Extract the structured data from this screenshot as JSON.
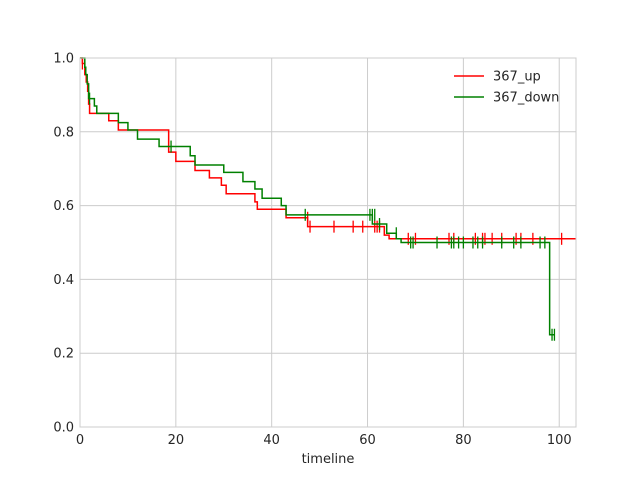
{
  "chart_data": {
    "type": "line",
    "step": "post",
    "title": "",
    "xlabel": "timeline",
    "ylabel": "",
    "xlim": [
      0,
      103.5
    ],
    "ylim": [
      0.0,
      1.0
    ],
    "xticks": [
      0,
      20,
      40,
      60,
      80,
      100
    ],
    "yticks": [
      0.0,
      0.2,
      0.4,
      0.6,
      0.8,
      1.0
    ],
    "xtick_labels": [
      "0",
      "20",
      "40",
      "60",
      "80",
      "100"
    ],
    "ytick_labels": [
      "0.0",
      "0.2",
      "0.4",
      "0.6",
      "0.8",
      "1.0"
    ],
    "grid": true,
    "legend_position": "top-right",
    "series": [
      {
        "name": "367_up",
        "color": "#ff0000",
        "x": [
          0,
          0.5,
          1.0,
          1.3,
          1.6,
          1.8,
          2.0,
          6.0,
          8.0,
          12.0,
          18.5,
          20.0,
          24.0,
          27.0,
          29.5,
          30.5,
          36.5,
          37.0,
          43.0,
          47.5,
          63.5,
          64.5,
          103.5
        ],
        "y": [
          1.0,
          0.985,
          0.955,
          0.935,
          0.91,
          0.875,
          0.85,
          0.83,
          0.805,
          0.805,
          0.745,
          0.72,
          0.695,
          0.675,
          0.655,
          0.632,
          0.61,
          0.59,
          0.567,
          0.543,
          0.52,
          0.51,
          0.51
        ],
        "censored_x": [
          0.5,
          47.5,
          48.0,
          53.0,
          57.0,
          59.0,
          61.5,
          62.0,
          62.5,
          68.5,
          70.0,
          77.0,
          78.0,
          82.5,
          84.0,
          84.5,
          86.0,
          88.0,
          91.0,
          92.0,
          94.5,
          100.5
        ],
        "censored_y": [
          0.985,
          0.567,
          0.543,
          0.543,
          0.543,
          0.543,
          0.543,
          0.543,
          0.543,
          0.51,
          0.51,
          0.51,
          0.51,
          0.51,
          0.51,
          0.51,
          0.51,
          0.51,
          0.51,
          0.51,
          0.51,
          0.51
        ]
      },
      {
        "name": "367_down",
        "color": "#008000",
        "x": [
          0,
          1.0,
          1.2,
          1.5,
          1.8,
          2.0,
          3.0,
          3.5,
          8.0,
          10.0,
          12.0,
          16.5,
          19.5,
          23.0,
          24.0,
          30.0,
          34.0,
          36.5,
          38.0,
          42.0,
          43.0,
          61.0,
          64.0,
          66.0,
          67.0,
          98.0,
          99.0
        ],
        "y": [
          1.0,
          0.975,
          0.955,
          0.93,
          0.89,
          0.89,
          0.87,
          0.85,
          0.825,
          0.805,
          0.78,
          0.76,
          0.76,
          0.735,
          0.71,
          0.69,
          0.665,
          0.645,
          0.62,
          0.6,
          0.575,
          0.55,
          0.525,
          0.51,
          0.5,
          0.25,
          0.25
        ],
        "censored_x": [
          2.0,
          19.0,
          47.0,
          60.5,
          61.0,
          61.5,
          62.5,
          66.0,
          69.0,
          69.5,
          74.5,
          77.5,
          78.0,
          79.0,
          80.0,
          82.0,
          83.0,
          84.0,
          88.0,
          90.5,
          92.0,
          96.0,
          97.0,
          98.5,
          99.0
        ],
        "censored_y": [
          0.89,
          0.76,
          0.575,
          0.575,
          0.575,
          0.575,
          0.55,
          0.525,
          0.5,
          0.5,
          0.5,
          0.5,
          0.5,
          0.5,
          0.5,
          0.5,
          0.5,
          0.5,
          0.5,
          0.5,
          0.5,
          0.5,
          0.5,
          0.25,
          0.25
        ]
      }
    ]
  }
}
